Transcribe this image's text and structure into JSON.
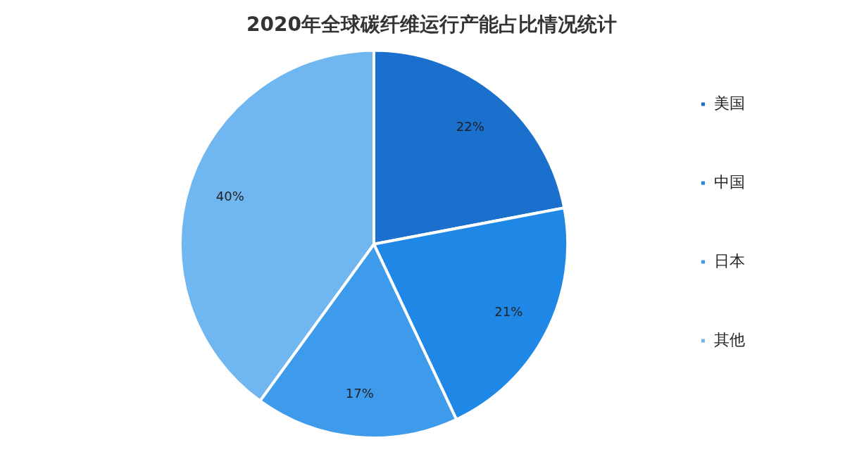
{
  "chart_data": {
    "type": "pie",
    "title": "2020年全球碳纤维运行产能占比情况统计",
    "categories": [
      "美国",
      "中国",
      "日本",
      "其他"
    ],
    "values": [
      22,
      21,
      17,
      40
    ],
    "value_labels": [
      "22%",
      "21%",
      "17%",
      "40%"
    ],
    "colors": [
      "#1a70cc",
      "#1f87e6",
      "#3e9bec",
      "#70b6f1"
    ],
    "legend": "right"
  }
}
